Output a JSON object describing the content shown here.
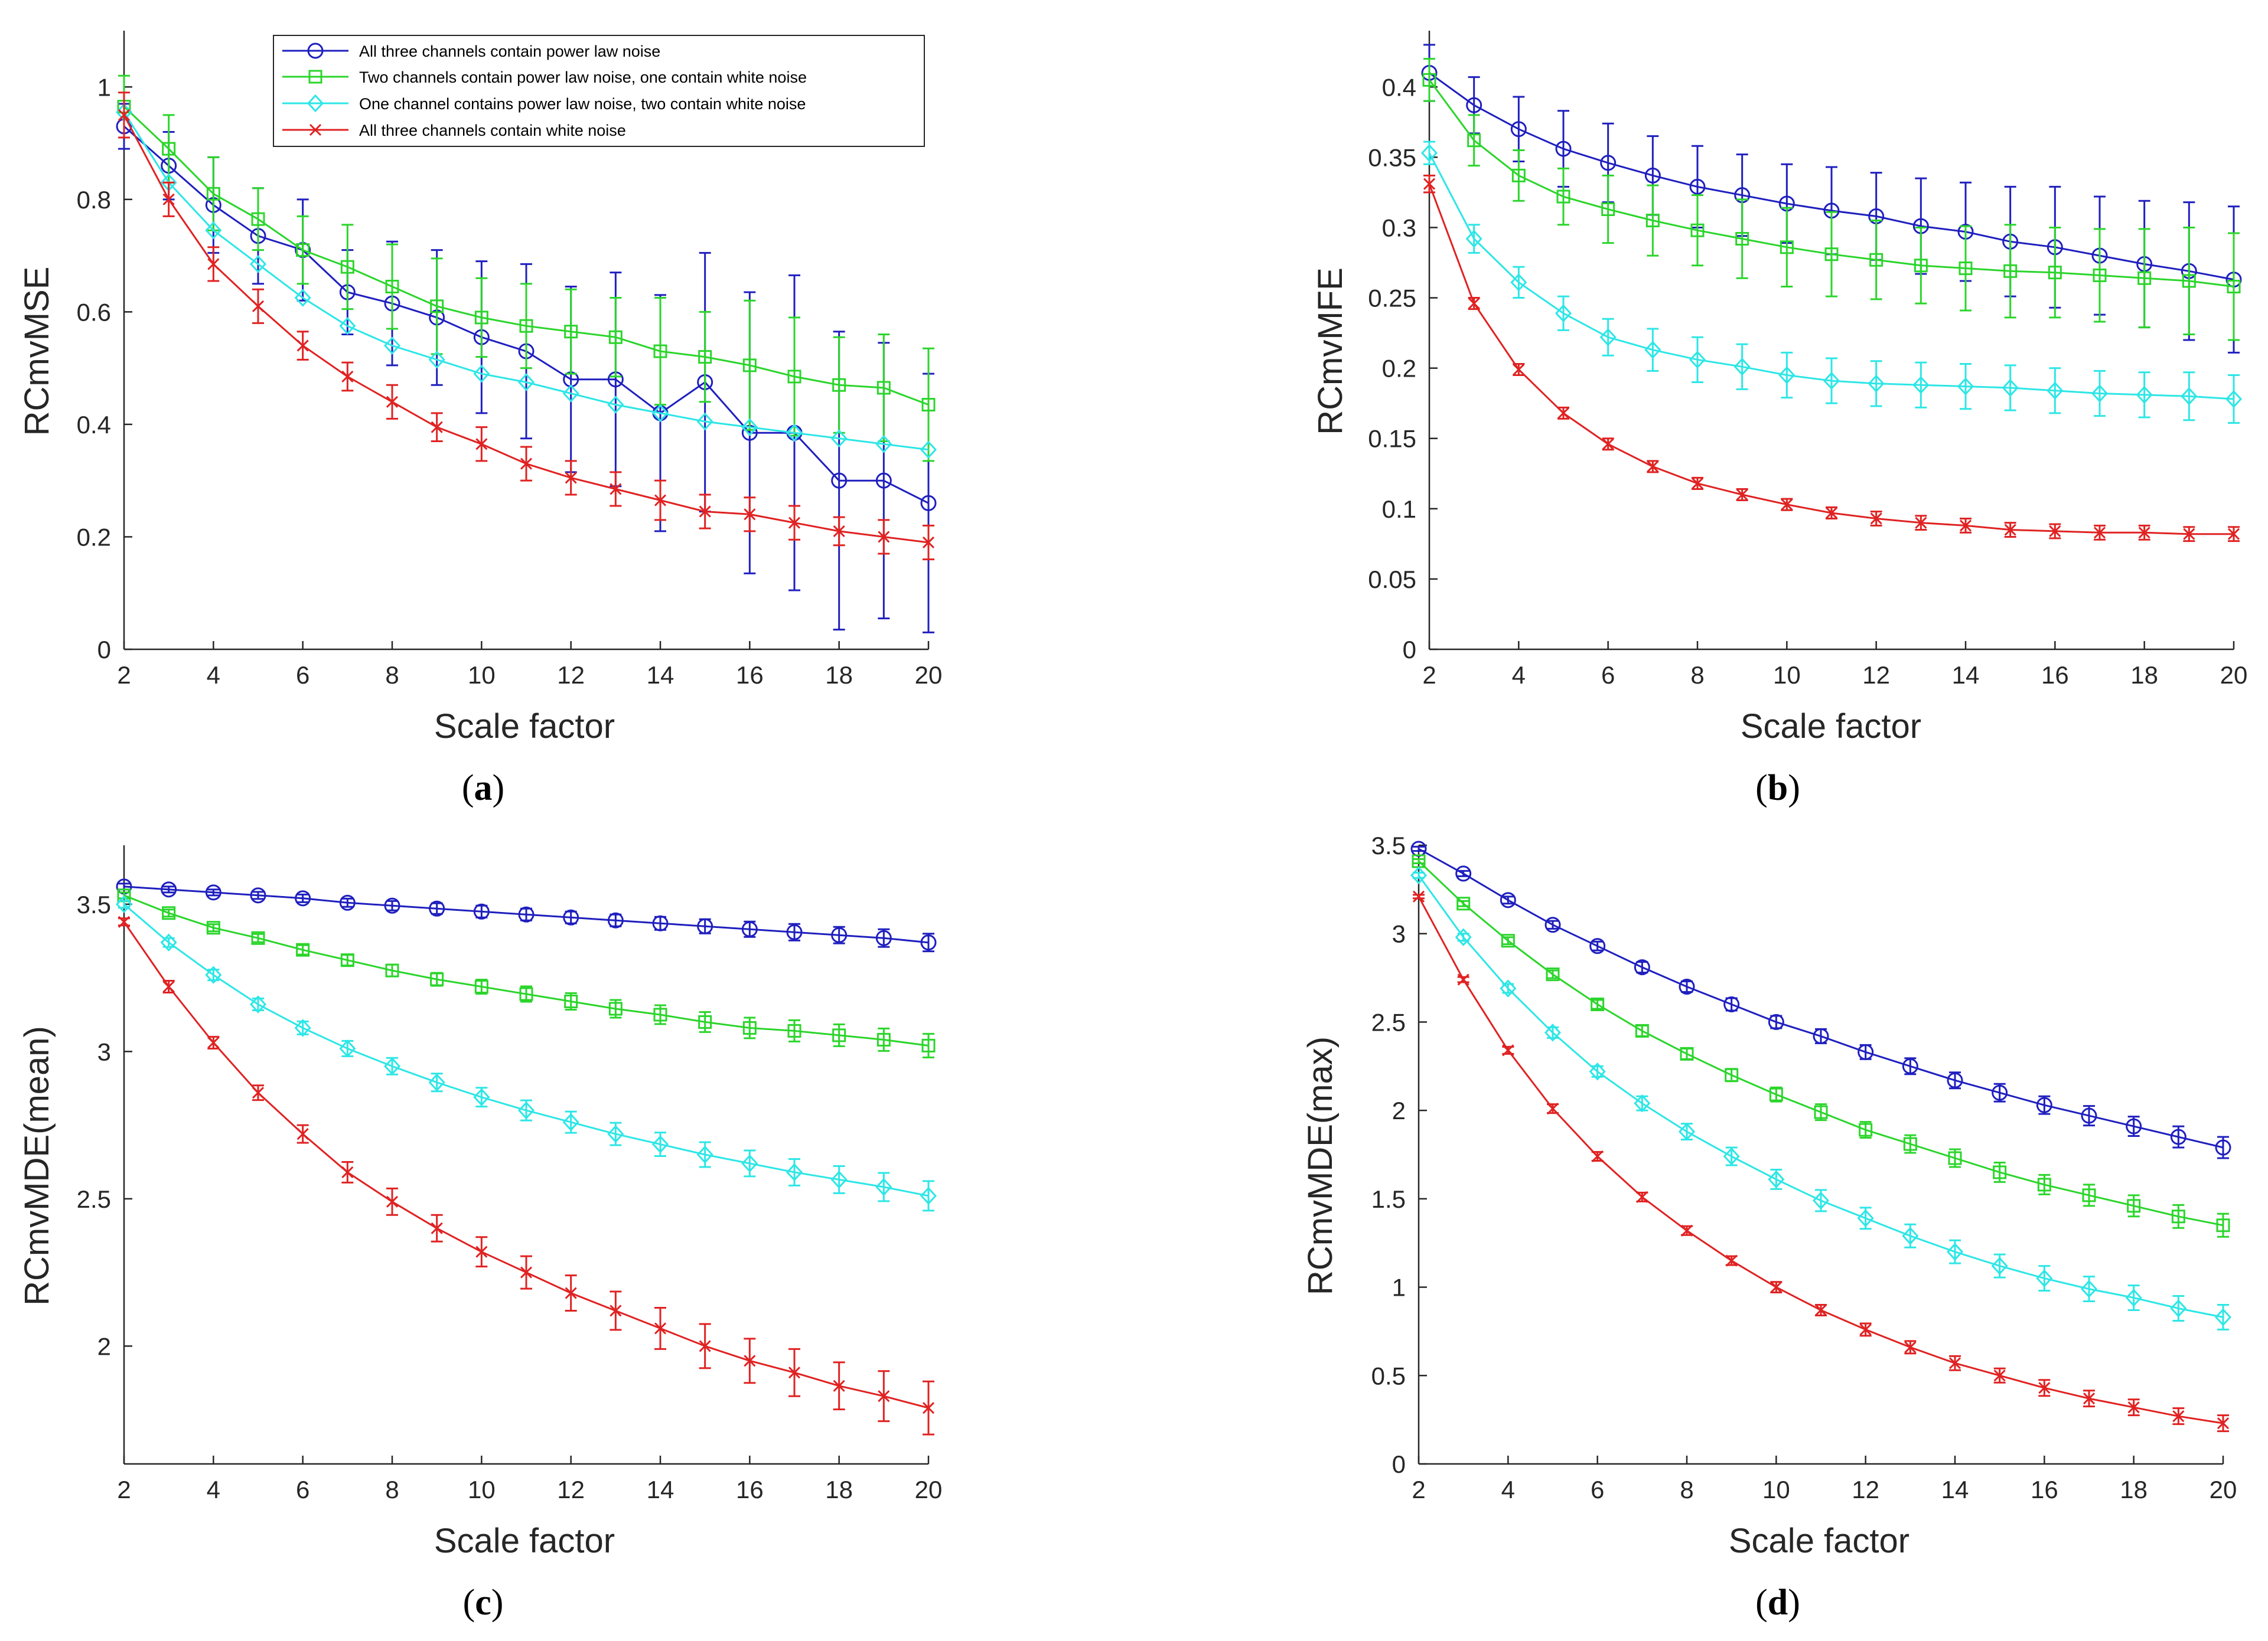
{
  "x": [
    2,
    3,
    4,
    5,
    6,
    7,
    8,
    9,
    10,
    11,
    12,
    13,
    14,
    15,
    16,
    17,
    18,
    19,
    20
  ],
  "series_meta": [
    {
      "name": "All three channels contain power law noise",
      "color": "#1f1fbf",
      "marker": "circle"
    },
    {
      "name": "Two channels contain power law noise, one contain white noise",
      "color": "#2bd52b",
      "marker": "square"
    },
    {
      "name": "One channel contains power law noise, two contain white noise",
      "color": "#2ee6e6",
      "marker": "diamond"
    },
    {
      "name": "All three channels contain white noise",
      "color": "#e02222",
      "marker": "x"
    }
  ],
  "chart_data": [
    {
      "id": "a",
      "panel_label": "a",
      "type": "line",
      "title": "",
      "xlabel": "Scale factor",
      "ylabel": "RCmvMSE",
      "xlim": [
        2,
        20
      ],
      "ylim": [
        0,
        1.1
      ],
      "xticks": [
        2,
        4,
        6,
        8,
        10,
        12,
        14,
        16,
        18,
        20
      ],
      "yticks": [
        0,
        0.2,
        0.4,
        0.6,
        0.8,
        1
      ],
      "ytick_labels": [
        "0",
        "0.2",
        "0.4",
        "0.6",
        "0.8",
        "1"
      ],
      "legend": "top-right",
      "series": [
        {
          "name": "All three channels contain power law noise",
          "values": [
            0.93,
            0.86,
            0.79,
            0.735,
            0.71,
            0.635,
            0.615,
            0.59,
            0.555,
            0.53,
            0.48,
            0.48,
            0.42,
            0.475,
            0.385,
            0.385,
            0.3,
            0.3,
            0.26
          ],
          "errors": [
            0.04,
            0.06,
            0.085,
            0.085,
            0.09,
            0.075,
            0.11,
            0.12,
            0.135,
            0.155,
            0.165,
            0.19,
            0.21,
            0.23,
            0.25,
            0.28,
            0.265,
            0.245,
            0.23
          ]
        },
        {
          "name": "Two channels contain power law noise, one contain white noise",
          "values": [
            0.965,
            0.89,
            0.81,
            0.765,
            0.71,
            0.68,
            0.645,
            0.61,
            0.59,
            0.575,
            0.565,
            0.555,
            0.53,
            0.52,
            0.505,
            0.485,
            0.47,
            0.465,
            0.435
          ],
          "errors": [
            0.055,
            0.06,
            0.065,
            0.055,
            0.06,
            0.075,
            0.075,
            0.085,
            0.07,
            0.075,
            0.075,
            0.07,
            0.095,
            0.08,
            0.115,
            0.105,
            0.085,
            0.095,
            0.1
          ]
        },
        {
          "name": "One channel contains power law noise, two contain white noise",
          "values": [
            0.955,
            0.83,
            0.745,
            0.685,
            0.625,
            0.575,
            0.54,
            0.515,
            0.49,
            0.475,
            0.455,
            0.435,
            0.42,
            0.405,
            0.395,
            0.385,
            0.375,
            0.365,
            0.355
          ]
        },
        {
          "name": "All three channels contain white noise",
          "values": [
            0.95,
            0.8,
            0.685,
            0.61,
            0.54,
            0.485,
            0.44,
            0.395,
            0.365,
            0.33,
            0.305,
            0.285,
            0.265,
            0.245,
            0.24,
            0.225,
            0.21,
            0.2,
            0.19
          ],
          "errors": [
            0.04,
            0.03,
            0.03,
            0.03,
            0.025,
            0.025,
            0.03,
            0.025,
            0.03,
            0.03,
            0.03,
            0.03,
            0.035,
            0.03,
            0.03,
            0.03,
            0.025,
            0.03,
            0.03
          ]
        }
      ]
    },
    {
      "id": "b",
      "panel_label": "b",
      "type": "line",
      "title": "",
      "xlabel": "Scale factor",
      "ylabel": "RCmvMFE",
      "xlim": [
        2,
        20
      ],
      "ylim": [
        0,
        0.44
      ],
      "xticks": [
        2,
        4,
        6,
        8,
        10,
        12,
        14,
        16,
        18,
        20
      ],
      "yticks": [
        0,
        0.05,
        0.1,
        0.15,
        0.2,
        0.25,
        0.3,
        0.35,
        0.4
      ],
      "ytick_labels": [
        "0",
        "0.05",
        "0.1",
        "0.15",
        "0.2",
        "0.25",
        "0.3",
        "0.35",
        "0.4"
      ],
      "series": [
        {
          "name": "All three channels contain power law noise",
          "values": [
            0.41,
            0.387,
            0.37,
            0.356,
            0.346,
            0.337,
            0.329,
            0.323,
            0.317,
            0.312,
            0.308,
            0.301,
            0.297,
            0.29,
            0.286,
            0.28,
            0.274,
            0.269,
            0.263
          ],
          "errors": [
            0.02,
            0.02,
            0.023,
            0.027,
            0.028,
            0.028,
            0.029,
            0.029,
            0.028,
            0.031,
            0.031,
            0.034,
            0.035,
            0.039,
            0.043,
            0.042,
            0.045,
            0.049,
            0.052
          ]
        },
        {
          "name": "Two channels contain power law noise, one contain white noise",
          "values": [
            0.405,
            0.362,
            0.337,
            0.322,
            0.313,
            0.305,
            0.298,
            0.292,
            0.286,
            0.281,
            0.277,
            0.273,
            0.271,
            0.269,
            0.268,
            0.266,
            0.264,
            0.262,
            0.258
          ],
          "errors": [
            0.015,
            0.018,
            0.018,
            0.02,
            0.024,
            0.025,
            0.025,
            0.028,
            0.028,
            0.03,
            0.028,
            0.027,
            0.03,
            0.033,
            0.032,
            0.033,
            0.035,
            0.038,
            0.038
          ]
        },
        {
          "name": "One channel contains power law noise, two contain white noise",
          "values": [
            0.353,
            0.292,
            0.261,
            0.239,
            0.222,
            0.213,
            0.206,
            0.201,
            0.195,
            0.191,
            0.189,
            0.188,
            0.187,
            0.186,
            0.184,
            0.182,
            0.181,
            0.18,
            0.178
          ],
          "errors": [
            0.008,
            0.01,
            0.011,
            0.012,
            0.013,
            0.015,
            0.016,
            0.016,
            0.016,
            0.016,
            0.016,
            0.016,
            0.016,
            0.016,
            0.016,
            0.016,
            0.016,
            0.017,
            0.017
          ]
        },
        {
          "name": "All three channels contain white noise",
          "values": [
            0.331,
            0.246,
            0.199,
            0.168,
            0.146,
            0.13,
            0.118,
            0.11,
            0.103,
            0.097,
            0.093,
            0.09,
            0.088,
            0.085,
            0.084,
            0.083,
            0.083,
            0.082,
            0.082
          ],
          "errors": [
            0.006,
            0.004,
            0.004,
            0.004,
            0.004,
            0.004,
            0.004,
            0.004,
            0.004,
            0.004,
            0.005,
            0.005,
            0.005,
            0.005,
            0.005,
            0.005,
            0.005,
            0.005,
            0.005
          ]
        }
      ]
    },
    {
      "id": "c",
      "panel_label": "c",
      "type": "line",
      "title": "",
      "xlabel": "Scale factor",
      "ylabel": "RCmvMDE(mean)",
      "xlim": [
        2,
        20
      ],
      "ylim": [
        1.6,
        3.7
      ],
      "xticks": [
        2,
        4,
        6,
        8,
        10,
        12,
        14,
        16,
        18,
        20
      ],
      "yticks": [
        2,
        2.5,
        3,
        3.5
      ],
      "ytick_labels": [
        "2",
        "2.5",
        "3",
        "3.5"
      ],
      "series": [
        {
          "name": "All three channels contain power law noise",
          "values": [
            3.56,
            3.55,
            3.54,
            3.53,
            3.52,
            3.505,
            3.495,
            3.485,
            3.475,
            3.465,
            3.455,
            3.445,
            3.435,
            3.425,
            3.415,
            3.405,
            3.395,
            3.385,
            3.37
          ],
          "errors": [
            0.01,
            0.01,
            0.01,
            0.012,
            0.013,
            0.014,
            0.016,
            0.018,
            0.02,
            0.02,
            0.02,
            0.02,
            0.022,
            0.024,
            0.026,
            0.028,
            0.028,
            0.03,
            0.03
          ]
        },
        {
          "name": "Two channels contain power law noise, one contain white noise",
          "values": [
            3.53,
            3.47,
            3.42,
            3.385,
            3.345,
            3.31,
            3.275,
            3.245,
            3.22,
            3.195,
            3.17,
            3.145,
            3.125,
            3.1,
            3.08,
            3.07,
            3.055,
            3.04,
            3.02
          ],
          "errors": [
            0.01,
            0.012,
            0.012,
            0.014,
            0.016,
            0.018,
            0.02,
            0.022,
            0.024,
            0.026,
            0.028,
            0.03,
            0.032,
            0.034,
            0.035,
            0.036,
            0.037,
            0.038,
            0.04
          ]
        },
        {
          "name": "One channel contains power law noise, two contain white noise",
          "values": [
            3.5,
            3.37,
            3.26,
            3.16,
            3.08,
            3.01,
            2.95,
            2.895,
            2.845,
            2.8,
            2.76,
            2.72,
            2.685,
            2.65,
            2.62,
            2.59,
            2.565,
            2.54,
            2.51
          ],
          "errors": [
            0.012,
            0.015,
            0.018,
            0.02,
            0.022,
            0.026,
            0.028,
            0.03,
            0.032,
            0.034,
            0.036,
            0.038,
            0.04,
            0.042,
            0.044,
            0.045,
            0.046,
            0.048,
            0.05
          ]
        },
        {
          "name": "All three channels contain white noise",
          "values": [
            3.44,
            3.22,
            3.03,
            2.86,
            2.72,
            2.59,
            2.49,
            2.4,
            2.32,
            2.25,
            2.18,
            2.12,
            2.06,
            2.0,
            1.95,
            1.91,
            1.865,
            1.83,
            1.79
          ],
          "errors": [
            0.012,
            0.02,
            0.02,
            0.025,
            0.03,
            0.035,
            0.045,
            0.045,
            0.05,
            0.055,
            0.06,
            0.065,
            0.07,
            0.075,
            0.075,
            0.08,
            0.08,
            0.085,
            0.09
          ]
        }
      ]
    },
    {
      "id": "d",
      "panel_label": "d",
      "type": "line",
      "title": "",
      "xlabel": "Scale factor",
      "ylabel": "RCmvMDE(max)",
      "xlim": [
        2,
        20
      ],
      "ylim": [
        0,
        3.5
      ],
      "xticks": [
        2,
        4,
        6,
        8,
        10,
        12,
        14,
        16,
        18,
        20
      ],
      "yticks": [
        0,
        0.5,
        1,
        1.5,
        2,
        2.5,
        3,
        3.5
      ],
      "ytick_labels": [
        "0",
        "0.5",
        "1",
        "1.5",
        "2",
        "2.5",
        "3",
        "3.5"
      ],
      "series": [
        {
          "name": "All three channels contain power law noise",
          "values": [
            3.48,
            3.34,
            3.19,
            3.05,
            2.93,
            2.81,
            2.7,
            2.6,
            2.5,
            2.42,
            2.33,
            2.25,
            2.17,
            2.1,
            2.03,
            1.97,
            1.91,
            1.85,
            1.79
          ],
          "errors": [
            0.012,
            0.015,
            0.02,
            0.022,
            0.025,
            0.03,
            0.03,
            0.035,
            0.035,
            0.04,
            0.04,
            0.045,
            0.045,
            0.05,
            0.05,
            0.055,
            0.055,
            0.06,
            0.06
          ]
        },
        {
          "name": "Two channels contain power law noise, one contain white noise",
          "values": [
            3.41,
            3.17,
            2.96,
            2.77,
            2.6,
            2.45,
            2.32,
            2.2,
            2.09,
            1.99,
            1.89,
            1.81,
            1.73,
            1.65,
            1.58,
            1.52,
            1.46,
            1.4,
            1.35
          ],
          "errors": [
            0.012,
            0.015,
            0.02,
            0.022,
            0.025,
            0.03,
            0.03,
            0.035,
            0.04,
            0.045,
            0.045,
            0.05,
            0.05,
            0.055,
            0.055,
            0.06,
            0.06,
            0.065,
            0.065
          ]
        },
        {
          "name": "One channel contains power law noise, two contain white noise",
          "values": [
            3.33,
            2.98,
            2.69,
            2.44,
            2.22,
            2.04,
            1.88,
            1.74,
            1.61,
            1.49,
            1.39,
            1.29,
            1.2,
            1.12,
            1.05,
            0.99,
            0.94,
            0.88,
            0.83
          ],
          "errors": [
            0.015,
            0.02,
            0.025,
            0.03,
            0.03,
            0.04,
            0.045,
            0.05,
            0.055,
            0.06,
            0.06,
            0.065,
            0.065,
            0.065,
            0.07,
            0.07,
            0.07,
            0.07,
            0.07
          ]
        },
        {
          "name": "All three channels contain white noise",
          "values": [
            3.21,
            2.74,
            2.34,
            2.01,
            1.74,
            1.51,
            1.32,
            1.15,
            1.0,
            0.87,
            0.76,
            0.66,
            0.57,
            0.5,
            0.43,
            0.37,
            0.32,
            0.27,
            0.23
          ],
          "errors": [
            0.01,
            0.015,
            0.02,
            0.025,
            0.025,
            0.025,
            0.025,
            0.025,
            0.03,
            0.03,
            0.035,
            0.035,
            0.04,
            0.04,
            0.045,
            0.045,
            0.045,
            0.045,
            0.045
          ]
        }
      ]
    }
  ]
}
